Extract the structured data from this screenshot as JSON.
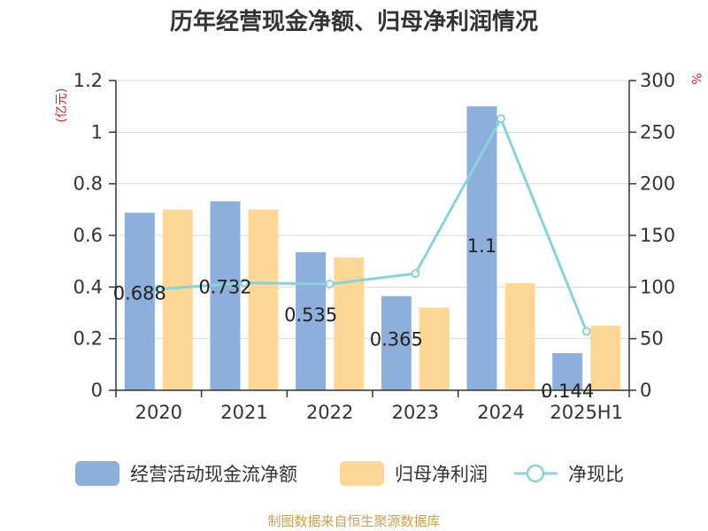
{
  "colors": {
    "bar_cash": "#8eaedc",
    "bar_profit": "#fed796",
    "line_ratio": "#87d3d6",
    "grid": "#d9d9d9",
    "axis": "#333333",
    "unit_text": "#e02020",
    "source_text": "#c7a052"
  },
  "chart_data": {
    "type": "bar",
    "title": "历年经营现金净额、归母净利润情况",
    "categories": [
      "2020",
      "2021",
      "2022",
      "2023",
      "2024",
      "2025H1"
    ],
    "y_left": {
      "unit": "(亿元)",
      "ylim": [
        0,
        1.2
      ],
      "ticks": [
        0,
        0.2,
        0.4,
        0.6,
        0.8,
        1,
        1.2
      ],
      "tick_labels": [
        "0",
        "0.2",
        "0.4",
        "0.6",
        "0.8",
        "1",
        "1.2"
      ]
    },
    "y_right": {
      "unit": "%",
      "ylim": [
        0,
        300
      ],
      "ticks": [
        0,
        50,
        100,
        150,
        200,
        250,
        300
      ],
      "tick_labels": [
        "0",
        "50",
        "100",
        "150",
        "200",
        "250",
        "300"
      ]
    },
    "series": [
      {
        "name": "经营活动现金流净额",
        "kind": "bar",
        "axis": "left",
        "values": [
          0.688,
          0.732,
          0.535,
          0.365,
          1.1,
          0.144
        ],
        "data_labels": [
          "0.688",
          "0.732",
          "0.535",
          "0.365",
          "1.1",
          "0.144"
        ]
      },
      {
        "name": "归母净利润",
        "kind": "bar",
        "axis": "left",
        "values": [
          0.7,
          0.7,
          0.515,
          0.32,
          0.415,
          0.25
        ]
      },
      {
        "name": "净现比",
        "kind": "line",
        "axis": "right",
        "values": [
          98,
          104,
          103,
          113,
          263,
          57
        ]
      }
    ],
    "grid": true,
    "legend_position": "bottom"
  },
  "source": "制图数据来自恒生聚源数据库"
}
